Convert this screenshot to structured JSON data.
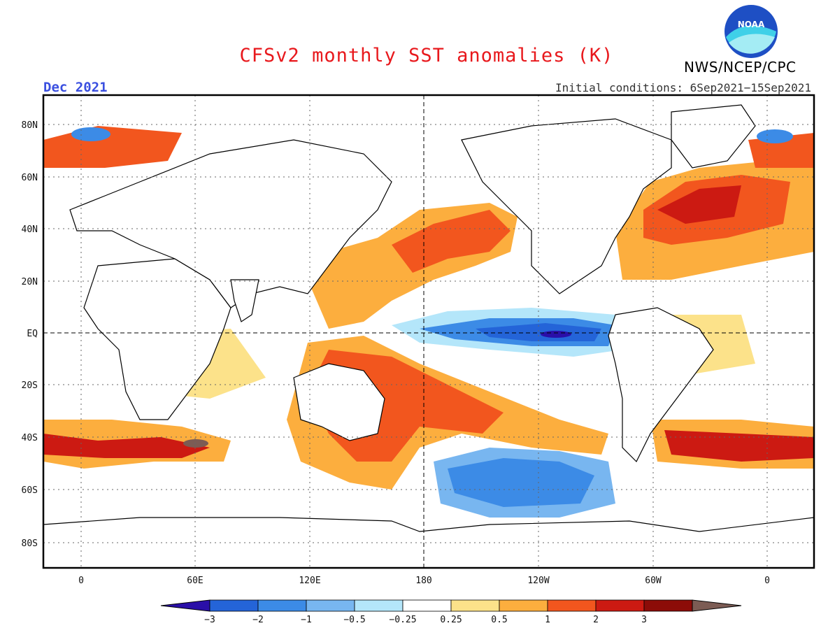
{
  "header": {
    "title": "CFSv2 monthly SST anomalies (K)",
    "agency": "NWS/NCEP/CPC",
    "logo_text": "NOAA",
    "month": "Dec 2021",
    "initial_conditions": "Initial conditions: 6Sep2021−15Sep2021"
  },
  "axes": {
    "lat_labels": [
      "80N",
      "60N",
      "40N",
      "20N",
      "EQ",
      "20S",
      "40S",
      "60S",
      "80S"
    ],
    "lon_labels": [
      "0",
      "60E",
      "120E",
      "180",
      "120W",
      "60W",
      "0"
    ]
  },
  "colorbar": {
    "labels": [
      "−3",
      "−2",
      "−1",
      "−0.5",
      "−0.25",
      "0.25",
      "0.5",
      "1",
      "2",
      "3"
    ],
    "colors": [
      "#2a0fa8",
      "#2464d8",
      "#3c8be6",
      "#78b6f0",
      "#b4e6fa",
      "#ffffff",
      "#fce28a",
      "#fcae3e",
      "#f2561e",
      "#cc1a12",
      "#8c0c08",
      "#7c5c54"
    ]
  },
  "colors": {
    "title": "#e8181c",
    "month": "#3a4fe0",
    "land": "#ffffff",
    "coast": "#000000"
  }
}
